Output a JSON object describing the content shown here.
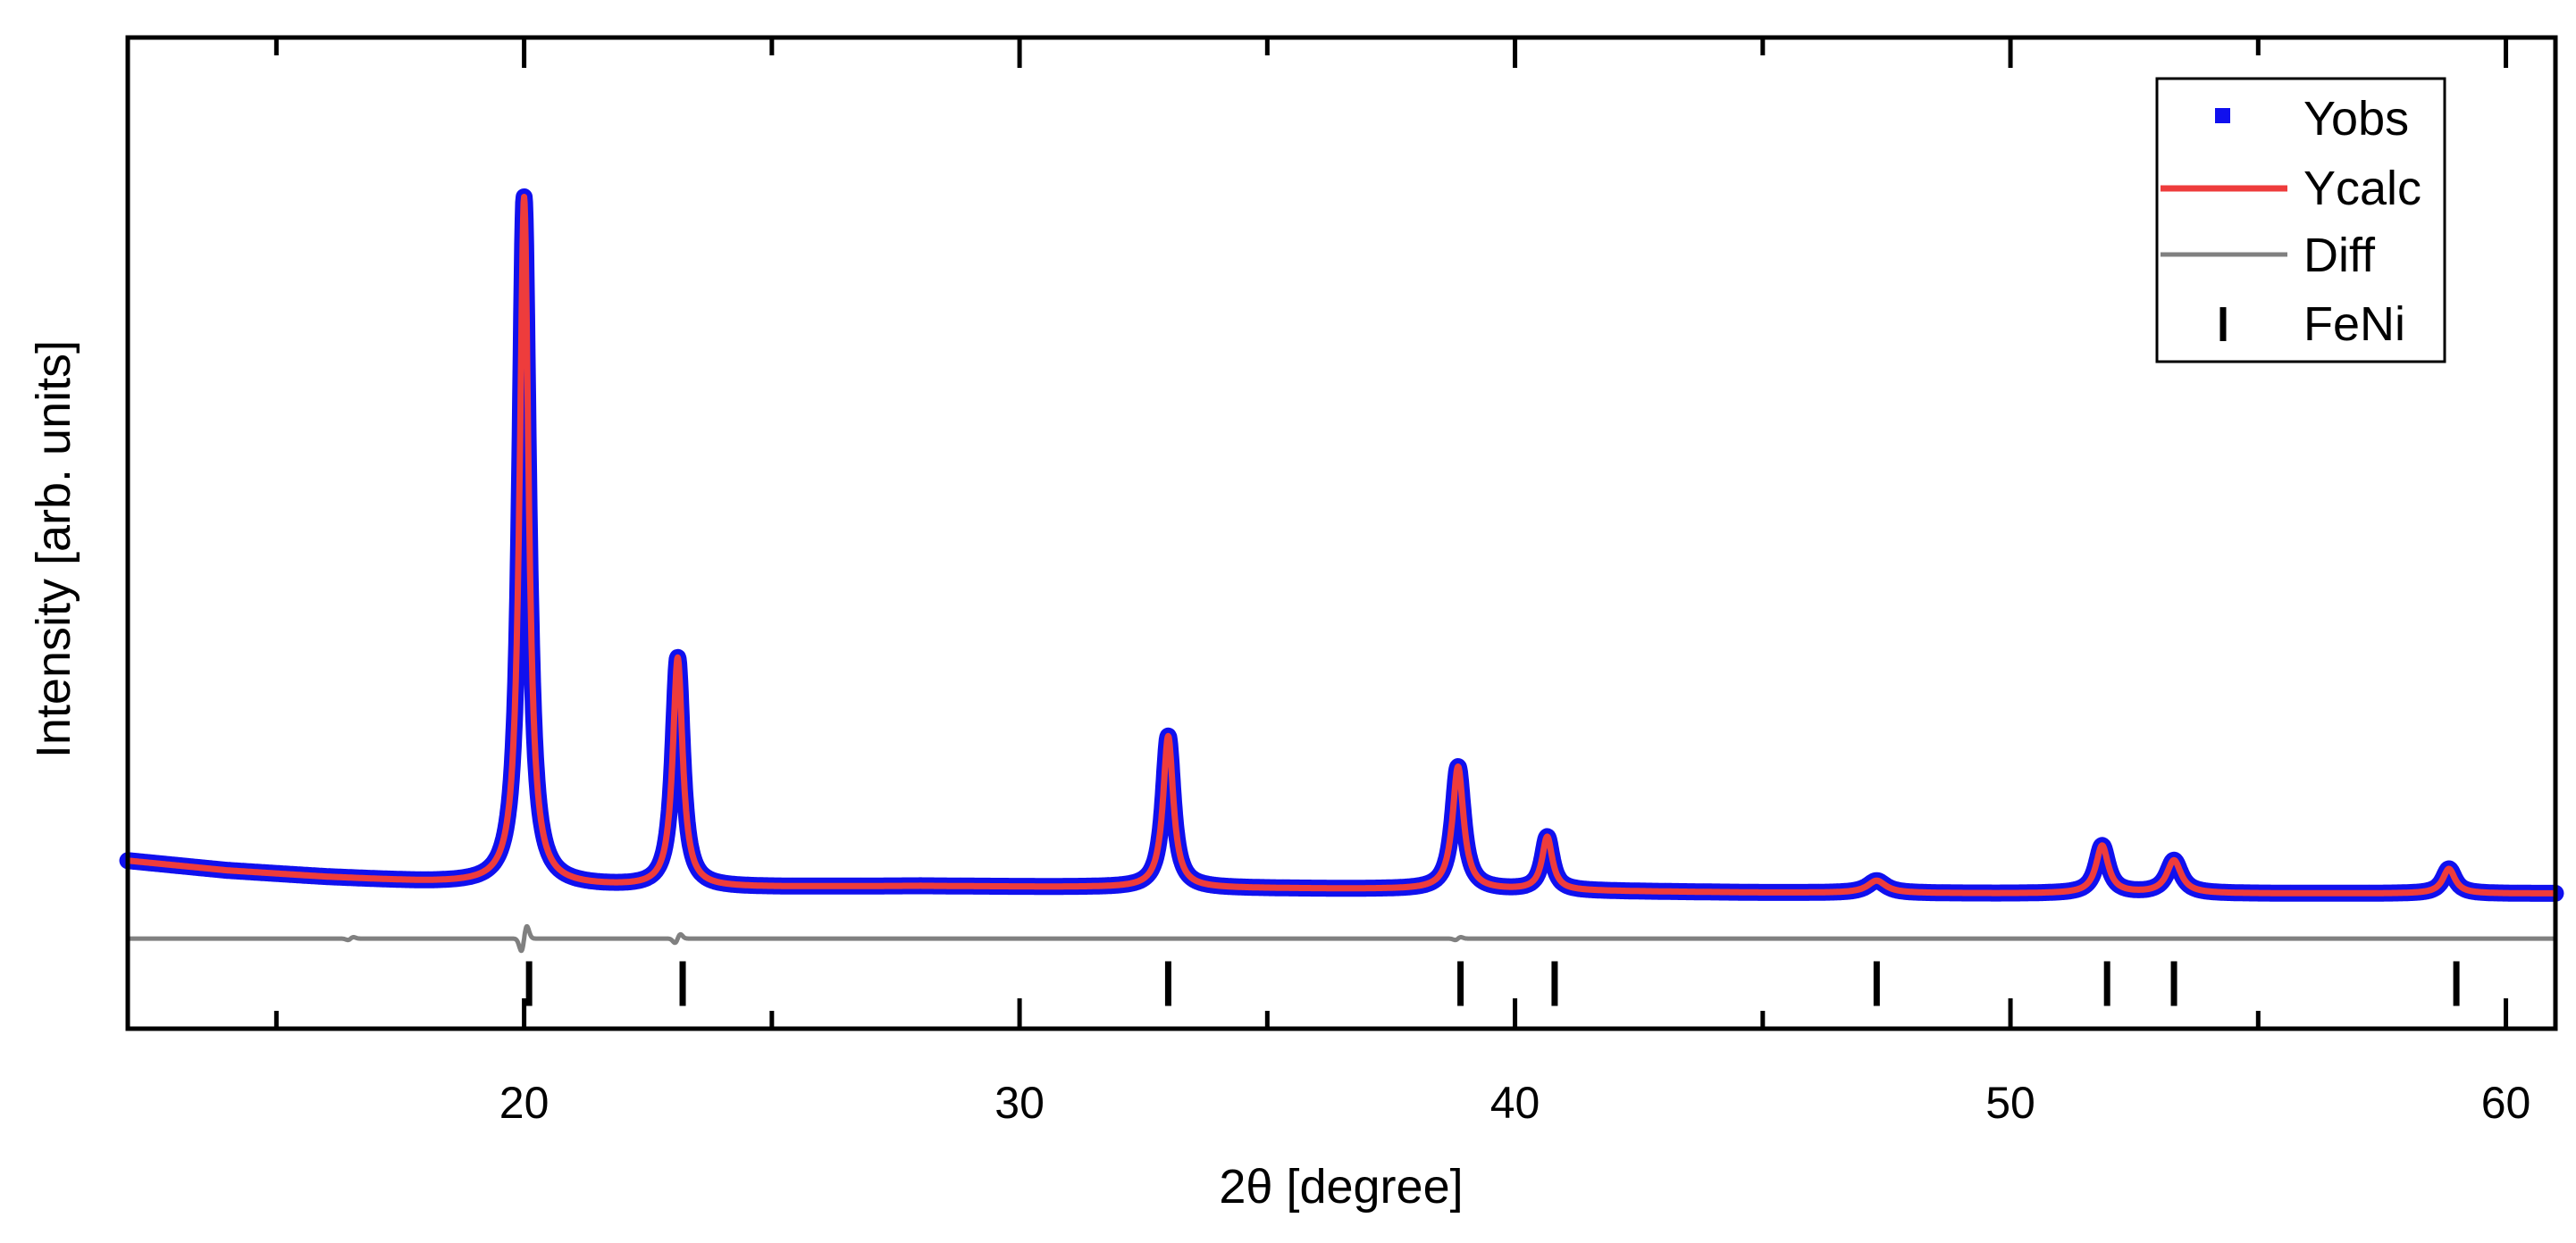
{
  "chart_data": {
    "type": "line",
    "title": "",
    "xlabel": "2θ [degree]",
    "ylabel": "Intensity [arb. units]",
    "xlim": [
      12,
      61
    ],
    "ylim": [
      -0.17,
      1.04
    ],
    "x_ticks": [
      20,
      30,
      40,
      50,
      60
    ],
    "x_tick_labels": [
      "20",
      "30",
      "40",
      "50",
      "60"
    ],
    "y_tick_labels": [],
    "grid": false,
    "legend_position": "top-right",
    "legend": [
      "Yobs",
      "Ycalc",
      "Diff",
      "FeNi"
    ],
    "colors": {
      "Yobs": "#1010ee",
      "Ycalc": "#ee3c3c",
      "Diff": "#808080",
      "FeNi": "#000000"
    },
    "background_curve": {
      "x": [
        12,
        14,
        16,
        18,
        20,
        23,
        28,
        33,
        38,
        45,
        50,
        55,
        61
      ],
      "y": [
        0.035,
        0.023,
        0.015,
        0.009,
        0.005,
        0.002,
        0.004,
        0.002,
        0.0,
        -0.004,
        -0.005,
        -0.005,
        -0.005
      ]
    },
    "peaks": [
      {
        "x": 20.0,
        "height": 0.84,
        "fwhm": 0.22
      },
      {
        "x": 23.1,
        "height": 0.28,
        "fwhm": 0.24
      },
      {
        "x": 33.0,
        "height": 0.185,
        "fwhm": 0.25
      },
      {
        "x": 38.85,
        "height": 0.15,
        "fwhm": 0.27
      },
      {
        "x": 40.65,
        "height": 0.065,
        "fwhm": 0.25
      },
      {
        "x": 47.3,
        "height": 0.015,
        "fwhm": 0.45
      },
      {
        "x": 51.85,
        "height": 0.058,
        "fwhm": 0.3
      },
      {
        "x": 53.3,
        "height": 0.04,
        "fwhm": 0.35
      },
      {
        "x": 58.85,
        "height": 0.03,
        "fwhm": 0.3
      }
    ],
    "diff_baseline": -0.06,
    "diff_features": [
      {
        "x": 20.0,
        "amplitude": 0.035
      },
      {
        "x": 23.1,
        "amplitude": 0.012
      },
      {
        "x": 16.5,
        "amplitude": 0.004
      },
      {
        "x": 38.85,
        "amplitude": 0.004
      }
    ],
    "reflection_marks": [
      20.1,
      23.2,
      33.0,
      38.9,
      40.8,
      47.3,
      51.95,
      53.3,
      59.0
    ],
    "reflection_mark_y": -0.115
  }
}
